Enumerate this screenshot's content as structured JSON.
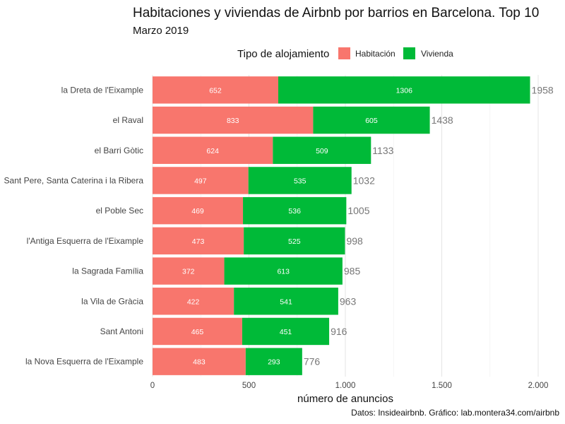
{
  "chart_data": {
    "type": "bar",
    "orientation": "horizontal",
    "stacked": true,
    "title": "Habitaciones y viviendas de Airbnb por barrios en Barcelona. Top 10",
    "subtitle": "Marzo 2019",
    "legend_title": "Tipo de alojamiento",
    "legend_position": "top",
    "xlabel": "número de anuncios",
    "ylabel": "",
    "caption": "Datos: Insideairbnb. Gráfico: lab.montera34.com/airbnb",
    "xlim": [
      0,
      2000
    ],
    "x_ticks": [
      0,
      500,
      1000,
      1500,
      2000
    ],
    "x_tick_labels": [
      "0",
      "500",
      "1.000",
      "1.500",
      "2.000"
    ],
    "grid": true,
    "categories": [
      "la Dreta de l'Eixample",
      "el Raval",
      "el Barri Gòtic",
      "Sant Pere, Santa Caterina i la Ribera",
      "el Poble Sec",
      "l'Antiga Esquerra de l'Eixample",
      "la Sagrada Família",
      "la Vila de Gràcia",
      "Sant Antoni",
      "la Nova Esquerra de l'Eixample"
    ],
    "series": [
      {
        "name": "Habitación",
        "color": "#F8766D",
        "values": [
          652,
          833,
          624,
          497,
          469,
          473,
          372,
          422,
          465,
          483
        ]
      },
      {
        "name": "Vivienda",
        "color": "#00BA38",
        "values": [
          1306,
          605,
          509,
          535,
          536,
          525,
          613,
          541,
          451,
          293
        ]
      }
    ],
    "totals": [
      1958,
      1438,
      1133,
      1032,
      1005,
      998,
      985,
      963,
      916,
      776
    ]
  }
}
